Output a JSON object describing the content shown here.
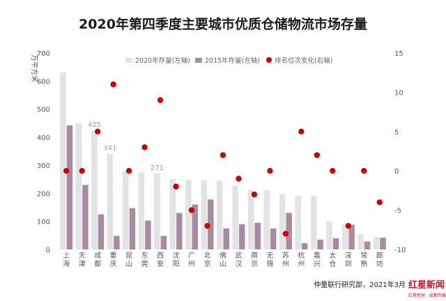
{
  "chart_data": {
    "type": "bar",
    "title": "2020年第四季度主要城市优质仓储物流市场存量",
    "ylabel_left": "万平方米",
    "categories": [
      "上海",
      "天津",
      "成都",
      "重庆",
      "昆山",
      "东莞",
      "西安",
      "沈阳",
      "广州",
      "北京",
      "佛山",
      "武汉",
      "南京",
      "无锡",
      "苏州",
      "杭州",
      "嘉兴",
      "太仓",
      "深圳",
      "常熟",
      "廊坊"
    ],
    "series": [
      {
        "name": "2020年存量(左轴)",
        "axis": "left",
        "kind": "bar",
        "color": "#e3e3e3",
        "values": [
          630,
          450,
          425,
          341,
          280,
          275,
          271,
          250,
          248,
          247,
          245,
          228,
          212,
          210,
          198,
          192,
          192,
          100,
          90,
          55,
          45
        ]
      },
      {
        "name": "2015年存量(左轴)",
        "axis": "left",
        "kind": "bar",
        "color": "#a98aa3",
        "values": [
          442,
          230,
          125,
          48,
          147,
          103,
          48,
          130,
          160,
          178,
          75,
          90,
          95,
          75,
          130,
          22,
          35,
          40,
          88,
          28,
          42
        ]
      },
      {
        "name": "排名位次变化(右轴)",
        "axis": "right",
        "kind": "scatter",
        "color": "#cc0000",
        "values": [
          0,
          0,
          5,
          11,
          0,
          3,
          9,
          -2,
          -5,
          -7,
          2,
          -1,
          -3,
          0,
          -8,
          5,
          2,
          0,
          -7,
          0,
          -4
        ]
      }
    ],
    "data_labels": [
      {
        "series": 0,
        "index": 2,
        "text": "425"
      },
      {
        "series": 0,
        "index": 3,
        "text": "341"
      },
      {
        "series": 0,
        "index": 6,
        "text": "271"
      }
    ],
    "ylim_left": [
      0,
      700
    ],
    "yticks_left": [
      "0",
      "100",
      "200",
      "300",
      "400",
      "500",
      "600",
      "700"
    ],
    "ylim_right": [
      -10,
      15
    ],
    "yticks_right": [
      "-10",
      "-5",
      "0",
      "5",
      "10",
      "15"
    ],
    "legend_position": "top",
    "grid": false
  },
  "source": "仲量联行研究部，2021年3月",
  "logo": {
    "main": "红星新闻",
    "sub": "红星新闻 · 成都传媒"
  }
}
